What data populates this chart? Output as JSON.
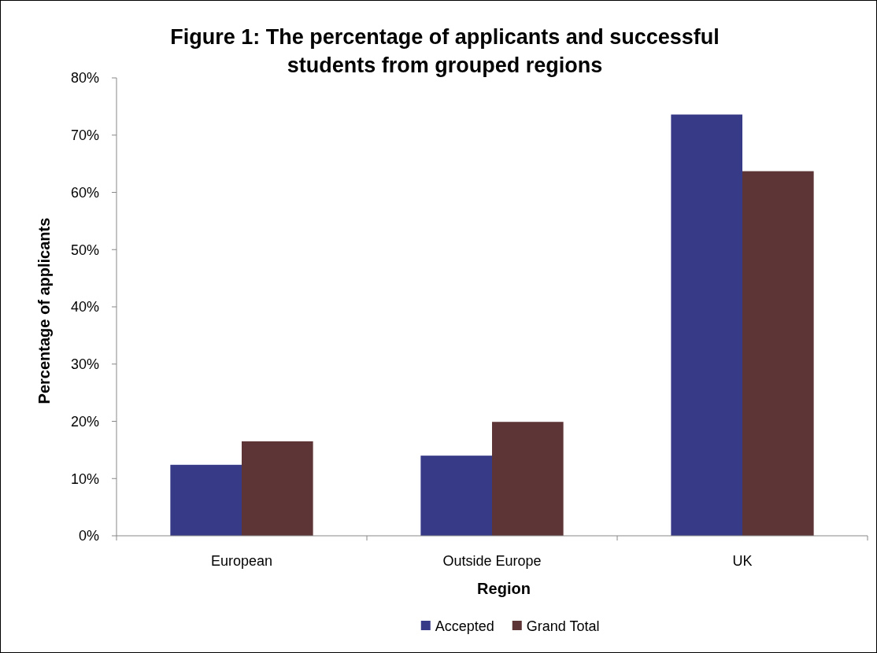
{
  "chart_data": {
    "type": "bar",
    "title": "Figure 1: The percentage of applicants and successful students from grouped regions",
    "xlabel": "Region",
    "ylabel": "Percentage of applicants",
    "categories": [
      "European",
      "Outside Europe",
      "UK"
    ],
    "series": [
      {
        "name": "Accepted",
        "color": "#363a87",
        "values": [
          12.4,
          14.0,
          73.6
        ]
      },
      {
        "name": "Grand Total",
        "color": "#5e3536",
        "values": [
          16.5,
          19.9,
          63.7
        ]
      }
    ],
    "ylim": [
      0,
      80
    ],
    "yticks": [
      {
        "value": 0,
        "label": "0%"
      },
      {
        "value": 10,
        "label": "10%"
      },
      {
        "value": 20,
        "label": "20%"
      },
      {
        "value": 30,
        "label": "30%"
      },
      {
        "value": 40,
        "label": "40%"
      },
      {
        "value": 50,
        "label": "50%"
      },
      {
        "value": 60,
        "label": "60%"
      },
      {
        "value": 70,
        "label": "70%"
      },
      {
        "value": 80,
        "label": "80%"
      }
    ],
    "grid": false,
    "legend": "bottom"
  }
}
